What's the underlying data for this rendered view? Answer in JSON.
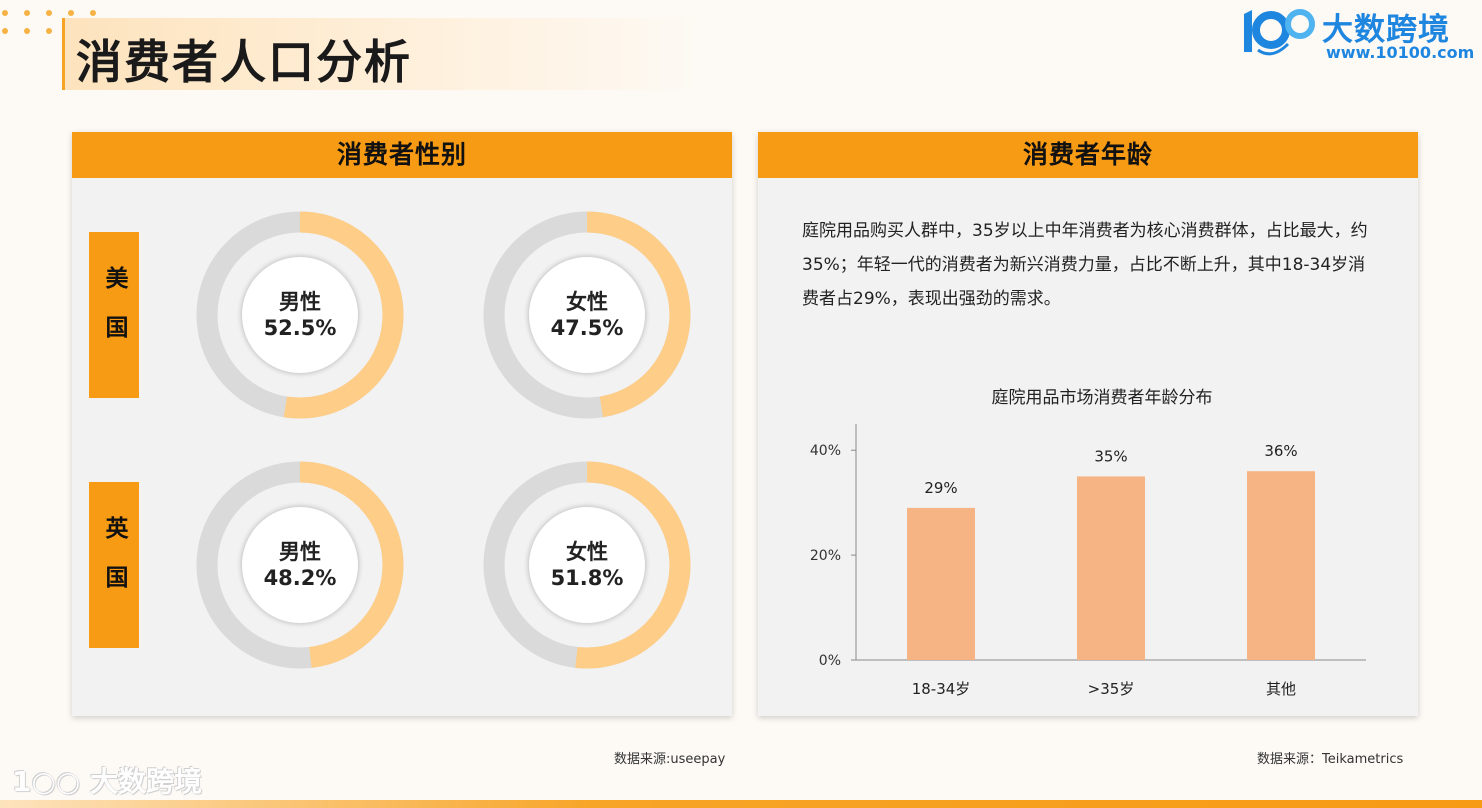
{
  "page": {
    "title": "消费者人口分析",
    "logo_text": "大数跨境",
    "logo_url": "www.10100.com",
    "watermark_text": "大数跨境",
    "accent_color": "#f79a14"
  },
  "gender_panel": {
    "heading": "消费者性别",
    "source": "数据来源:useepay",
    "countries": [
      {
        "name": "美国",
        "items": [
          {
            "label": "男性",
            "value_text": "52.5%",
            "value": 52.5
          },
          {
            "label": "女性",
            "value_text": "47.5%",
            "value": 47.5
          }
        ]
      },
      {
        "name": "英国",
        "items": [
          {
            "label": "男性",
            "value_text": "48.2%",
            "value": 48.2
          },
          {
            "label": "女性",
            "value_text": "51.8%",
            "value": 51.8
          }
        ]
      }
    ],
    "colors": {
      "track": "#dadada",
      "fill": "#fecd88"
    }
  },
  "age_panel": {
    "heading": "消费者年龄",
    "description": "庭院用品购买人群中，35岁以上中年消费者为核心消费群体，占比最大，约35%；年轻一代的消费者为新兴消费力量，占比不断上升，其中18-34岁消费者占29%，表现出强劲的需求。",
    "source": "数据来源：Teikametrics"
  },
  "chart_data": [
    {
      "type": "pie",
      "subplot": "美国-男性",
      "title": "",
      "labels": [
        "男性",
        "other"
      ],
      "values": [
        52.5,
        47.5
      ]
    },
    {
      "type": "pie",
      "subplot": "美国-女性",
      "title": "",
      "labels": [
        "女性",
        "other"
      ],
      "values": [
        47.5,
        52.5
      ]
    },
    {
      "type": "pie",
      "subplot": "英国-男性",
      "title": "",
      "labels": [
        "男性",
        "other"
      ],
      "values": [
        48.2,
        51.8
      ]
    },
    {
      "type": "pie",
      "subplot": "英国-女性",
      "title": "",
      "labels": [
        "女性",
        "other"
      ],
      "values": [
        51.8,
        48.2
      ]
    },
    {
      "type": "bar",
      "title": "庭院用品市场消费者年龄分布",
      "categories": [
        "18-34岁",
        ">35岁",
        "其他"
      ],
      "values": [
        29,
        35,
        36
      ],
      "value_labels": [
        "29%",
        "35%",
        "36%"
      ],
      "xlabel": "",
      "ylabel": "",
      "ylim": [
        0,
        45
      ],
      "yticks": [
        0,
        20,
        40
      ],
      "ytick_labels": [
        "0%",
        "20%",
        "40%"
      ],
      "grid": false,
      "bar_color": "#f6b383"
    }
  ]
}
